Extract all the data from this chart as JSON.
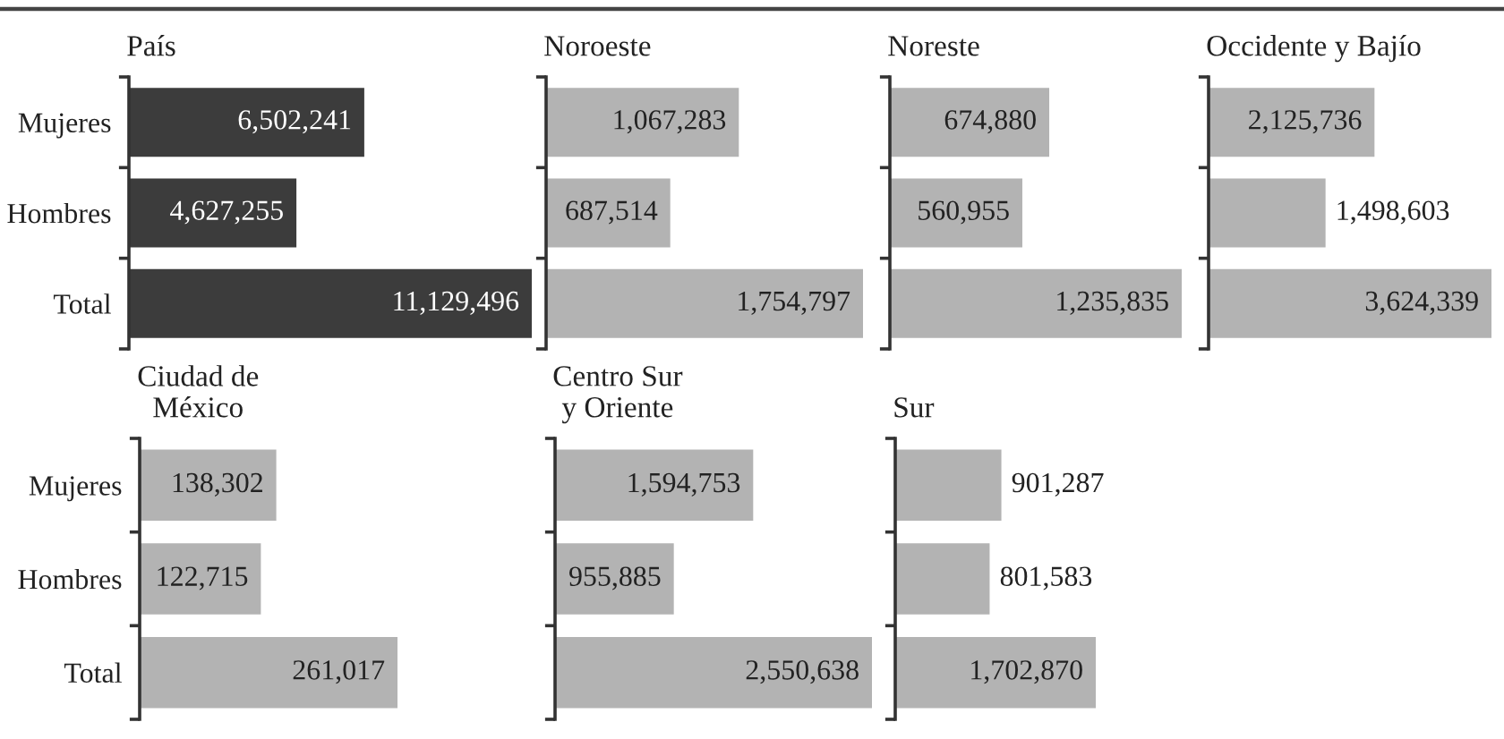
{
  "chart_data": [
    {
      "type": "bar",
      "orientation": "horizontal",
      "title": "País",
      "categories": [
        "Mujeres",
        "Hombres",
        "Total"
      ],
      "values": [
        6502241,
        4627255,
        11129496
      ],
      "value_labels": [
        "6,502,241",
        "4,627,255",
        "11,129,496"
      ],
      "color": "#3c3c3c",
      "tick_labels": "y"
    },
    {
      "type": "bar",
      "orientation": "horizontal",
      "title": "Noroeste",
      "categories": [
        null,
        null,
        null
      ],
      "values": [
        1067283,
        687514,
        1754797
      ],
      "value_labels": [
        "1,067,283",
        "687,514",
        "1,754,797"
      ],
      "color": "#b3b3b3",
      "tick_labels": false
    },
    {
      "type": "bar",
      "orientation": "horizontal",
      "title": "Noreste",
      "categories": [
        null,
        null,
        null
      ],
      "values": [
        674880,
        560955,
        1235835
      ],
      "value_labels": [
        "674,880",
        "560,955",
        "1,235,835"
      ],
      "color": "#b3b3b3",
      "tick_labels": false
    },
    {
      "type": "bar",
      "orientation": "horizontal",
      "title": "Occidente y Bajío",
      "categories": [
        null,
        null,
        null
      ],
      "values": [
        2125736,
        1498603,
        3624339
      ],
      "value_labels": [
        "2,125,736",
        "1,498,603",
        "3,624,339"
      ],
      "color": "#b3b3b3",
      "tick_labels": false
    },
    {
      "type": "bar",
      "orientation": "horizontal",
      "title": "Ciudad de\nMéxico",
      "categories": [
        "Mujeres",
        "Hombres",
        "Total"
      ],
      "values": [
        138302,
        122715,
        261017
      ],
      "value_labels": [
        "138,302",
        "122,715",
        "261,017"
      ],
      "color": "#b3b3b3",
      "tick_labels": "y"
    },
    {
      "type": "bar",
      "orientation": "horizontal",
      "title": "Centro Sur\ny Oriente",
      "categories": [
        null,
        null,
        null
      ],
      "values": [
        1594753,
        955885,
        2550638
      ],
      "value_labels": [
        "1,594,753",
        "955,885",
        "2,550,638"
      ],
      "color": "#b3b3b3",
      "tick_labels": false
    },
    {
      "type": "bar",
      "orientation": "horizontal",
      "title": "Sur",
      "categories": [
        null,
        null,
        null
      ],
      "values": [
        901287,
        801583,
        1702870
      ],
      "value_labels": [
        "901,287",
        "801,583",
        "1,702,870"
      ],
      "color": "#b3b3b3",
      "tick_labels": false
    }
  ]
}
